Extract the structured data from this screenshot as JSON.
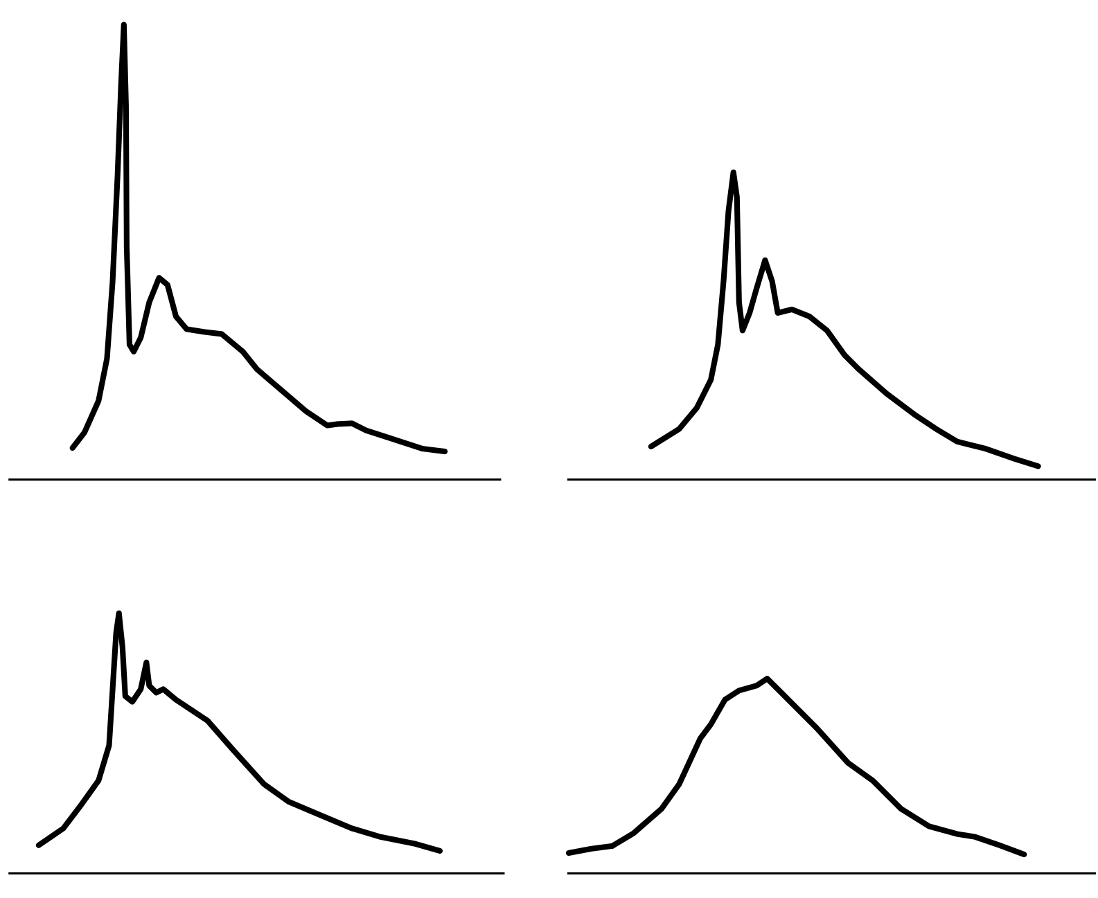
{
  "chart_data": [
    {
      "type": "line",
      "x": [
        91,
        108,
        128,
        140,
        148,
        155,
        160,
        164,
        167,
        168,
        172,
        178,
        188,
        200,
        214,
        226,
        238,
        253,
        278,
        303,
        333,
        353,
        388,
        423,
        453,
        468,
        488,
        508,
        548,
        588,
        620
      ],
      "series": [
        {
          "color": "#000000",
          "values": [
            43,
            65,
            110,
            170,
            280,
            430,
            560,
            645,
            530,
            330,
            190,
            180,
            200,
            250,
            285,
            275,
            230,
            212,
            208,
            205,
            180,
            155,
            125,
            95,
            75,
            77,
            78,
            68,
            55,
            42,
            38
          ]
        }
      ],
      "xlim": [
        0,
        700
      ],
      "ylim": [
        0,
        650
      ]
    },
    {
      "type": "line",
      "x": [
        119,
        159,
        184,
        204,
        214,
        222,
        229,
        236,
        241,
        244,
        249,
        259,
        269,
        281,
        291,
        299,
        319,
        344,
        369,
        394,
        414,
        454,
        494,
        524,
        554,
        594,
        634,
        669
      ],
      "series": [
        {
          "color": "#000000",
          "values": [
            45,
            70,
            100,
            140,
            190,
            280,
            380,
            435,
            400,
            250,
            210,
            235,
            270,
            310,
            280,
            235,
            240,
            230,
            210,
            175,
            155,
            120,
            90,
            70,
            52,
            42,
            28,
            17
          ]
        }
      ],
      "xlim": [
        0,
        751
      ],
      "ylim": [
        0,
        650
      ]
    },
    {
      "type": "line",
      "x": [
        43,
        78,
        103,
        128,
        143,
        148,
        153,
        157,
        162,
        166,
        176,
        188,
        196,
        200,
        210,
        220,
        238,
        283,
        318,
        363,
        398,
        438,
        488,
        528,
        578,
        613
      ],
      "series": [
        {
          "color": "#000000",
          "values": [
            38,
            62,
            95,
            130,
            180,
            260,
            340,
            368,
            320,
            250,
            242,
            260,
            298,
            265,
            255,
            260,
            245,
            215,
            175,
            125,
            100,
            83,
            62,
            50,
            40,
            30
          ]
        }
      ],
      "xlim": [
        0,
        705
      ],
      "ylim": [
        0,
        560
      ]
    },
    {
      "type": "line",
      "x": [
        2,
        34,
        64,
        94,
        134,
        159,
        189,
        204,
        224,
        244,
        269,
        284,
        304,
        354,
        399,
        434,
        474,
        514,
        554,
        579,
        614,
        649
      ],
      "series": [
        {
          "color": "#000000",
          "values": [
            27,
            33,
            37,
            55,
            90,
            125,
            190,
            210,
            245,
            258,
            265,
            275,
            255,
            205,
            155,
            130,
            90,
            65,
            54,
            50,
            38,
            25
          ]
        }
      ],
      "xlim": [
        0,
        751
      ],
      "ylim": [
        0,
        560
      ]
    }
  ]
}
